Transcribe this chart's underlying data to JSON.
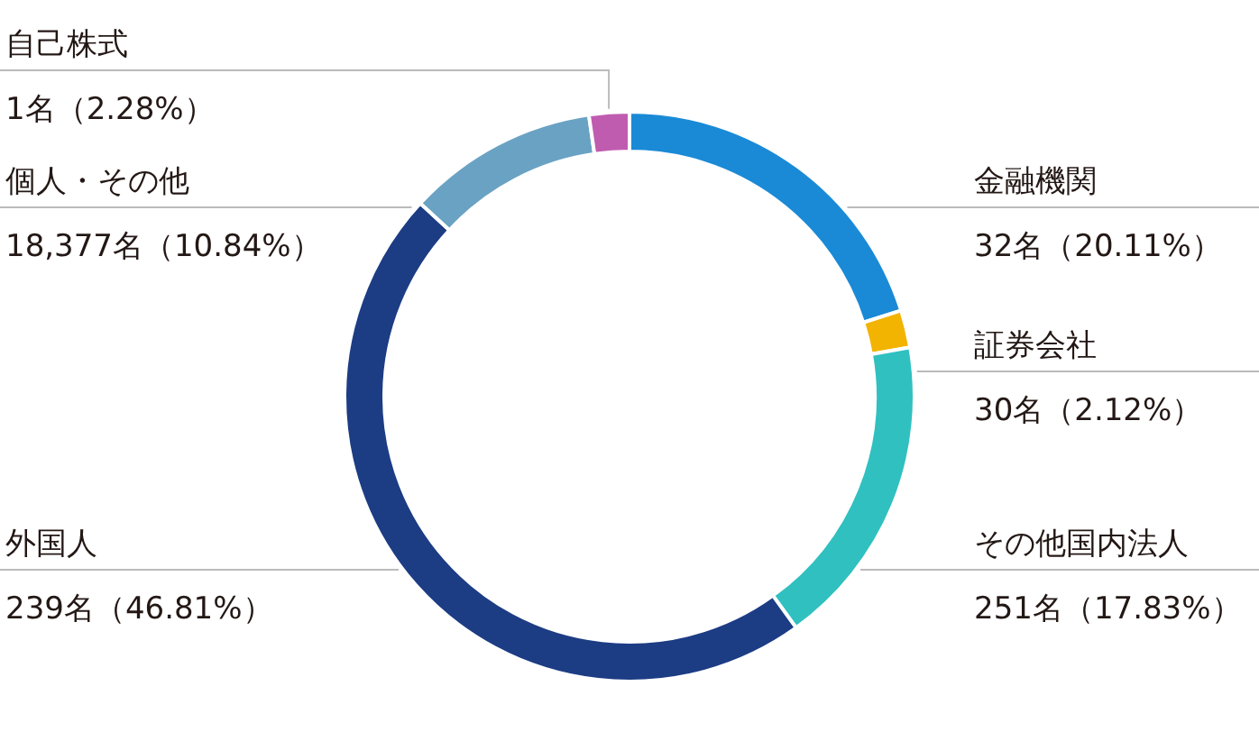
{
  "chart_data": {
    "type": "donut",
    "categories": [
      "金融機関",
      "証券会社",
      "その他国内法人",
      "外国人",
      "個人・その他",
      "自己株式"
    ],
    "values": [
      20.11,
      2.12,
      17.83,
      46.81,
      10.84,
      2.28
    ],
    "value_labels": [
      "32名（20.11%）",
      "30名（2.12%）",
      "251名（17.83%）",
      "239名（46.81%）",
      "18,377名（10.84%）",
      "1名（2.28%）"
    ],
    "colors": [
      "#1a8ad6",
      "#f2b400",
      "#30c0c0",
      "#1c3c84",
      "#6aa2c4",
      "#c05cb0"
    ]
  }
}
